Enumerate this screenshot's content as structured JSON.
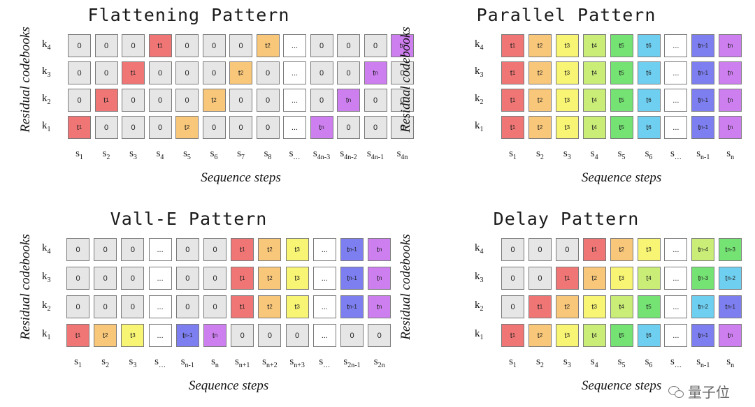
{
  "colors": {
    "zero": "#e6e6e6",
    "dots": "#ffffff",
    "t1": "#f07575",
    "t2": "#f9c779",
    "t3": "#f8f574",
    "t4": "#c9ed77",
    "t5": "#75e374",
    "t6": "#6fcff0",
    "tn-4": "#c9ed77",
    "tn-3": "#75e374",
    "tn-2": "#6fcff0",
    "tn-1": "#7d7ef0",
    "tn": "#cd7ff0"
  },
  "panels": [
    {
      "id": "flattening",
      "title": "Flattening Pattern",
      "ylabel": "Residual codebooks",
      "xlabel": "Sequence steps",
      "rows": [
        "k|4",
        "k|3",
        "k|2",
        "k|1"
      ],
      "columns": [
        "s|1",
        "s|2",
        "s|3",
        "s|4",
        "s|5",
        "s|6",
        "s|7",
        "s|8",
        "s|…",
        "s|4n-3",
        "s|4n-2",
        "s|4n-1",
        "s|4n"
      ],
      "grid": [
        [
          "0",
          "0",
          "0",
          "t1",
          "0",
          "0",
          "0",
          "t2",
          "...",
          "0",
          "0",
          "0",
          "tn"
        ],
        [
          "0",
          "0",
          "t1",
          "0",
          "0",
          "0",
          "t2",
          "0",
          "...",
          "0",
          "0",
          "tn",
          "0"
        ],
        [
          "0",
          "t1",
          "0",
          "0",
          "0",
          "t2",
          "0",
          "0",
          "...",
          "0",
          "tn",
          "0",
          "0"
        ],
        [
          "t1",
          "0",
          "0",
          "0",
          "t2",
          "0",
          "0",
          "0",
          "...",
          "tn",
          "0",
          "0",
          "0"
        ]
      ]
    },
    {
      "id": "parallel",
      "title": "Parallel Pattern",
      "ylabel": "Residual codebooks",
      "xlabel": "Sequence steps",
      "rows": [
        "k|4",
        "k|3",
        "k|2",
        "k|1"
      ],
      "columns": [
        "s|1",
        "s|2",
        "s|3",
        "s|4",
        "s|5",
        "s|6",
        "s|…",
        "s|n-1",
        "s|n"
      ],
      "grid": [
        [
          "t1",
          "t2",
          "t3",
          "t4",
          "t5",
          "t6",
          "...",
          "tn-1",
          "tn"
        ],
        [
          "t1",
          "t2",
          "t3",
          "t4",
          "t5",
          "t6",
          "...",
          "tn-1",
          "tn"
        ],
        [
          "t1",
          "t2",
          "t3",
          "t4",
          "t5",
          "t6",
          "...",
          "tn-1",
          "tn"
        ],
        [
          "t1",
          "t2",
          "t3",
          "t4",
          "t5",
          "t6",
          "...",
          "tn-1",
          "tn"
        ]
      ]
    },
    {
      "id": "valle",
      "title": "Vall-E Pattern",
      "ylabel": "Residual codebooks",
      "xlabel": "Sequence steps",
      "rows": [
        "k|4",
        "k|3",
        "k|2",
        "k|1"
      ],
      "columns": [
        "s|1",
        "s|2",
        "s|3",
        "s|…",
        "s|n-1",
        "s|n",
        "s|n+1",
        "s|n+2",
        "s|n+3",
        "s|…",
        "s|2n-1",
        "s|2n"
      ],
      "grid": [
        [
          "0",
          "0",
          "0",
          "...",
          "0",
          "0",
          "t1",
          "t2",
          "t3",
          "...",
          "tn-1",
          "tn"
        ],
        [
          "0",
          "0",
          "0",
          "...",
          "0",
          "0",
          "t1",
          "t2",
          "t3",
          "...",
          "tn-1",
          "tn"
        ],
        [
          "0",
          "0",
          "0",
          "...",
          "0",
          "0",
          "t1",
          "t2",
          "t3",
          "...",
          "tn-1",
          "tn"
        ],
        [
          "t1",
          "t2",
          "t3",
          "...",
          "tn-1",
          "tn",
          "0",
          "0",
          "0",
          "...",
          "0",
          "0"
        ]
      ]
    },
    {
      "id": "delay",
      "title": "Delay Pattern",
      "ylabel": "Residual codebooks",
      "xlabel": "Sequence steps",
      "rows": [
        "k|4",
        "k|3",
        "k|2",
        "k|1"
      ],
      "columns": [
        "s|1",
        "s|2",
        "s|3",
        "s|4",
        "s|5",
        "s|6",
        "s|…",
        "s|n-1",
        "s|n"
      ],
      "grid": [
        [
          "0",
          "0",
          "0",
          "t1",
          "t2",
          "t3",
          "...",
          "tn-4",
          "tn-3"
        ],
        [
          "0",
          "0",
          "t1",
          "t2",
          "t3",
          "t4",
          "...",
          "tn-3",
          "tn-2"
        ],
        [
          "0",
          "t1",
          "t2",
          "t3",
          "t4",
          "t5",
          "...",
          "tn-2",
          "tn-1"
        ],
        [
          "t1",
          "t2",
          "t3",
          "t4",
          "t5",
          "t6",
          "...",
          "tn-1",
          "tn"
        ]
      ]
    }
  ],
  "watermark": {
    "icon": "wechat-icon",
    "text": "量子位"
  }
}
